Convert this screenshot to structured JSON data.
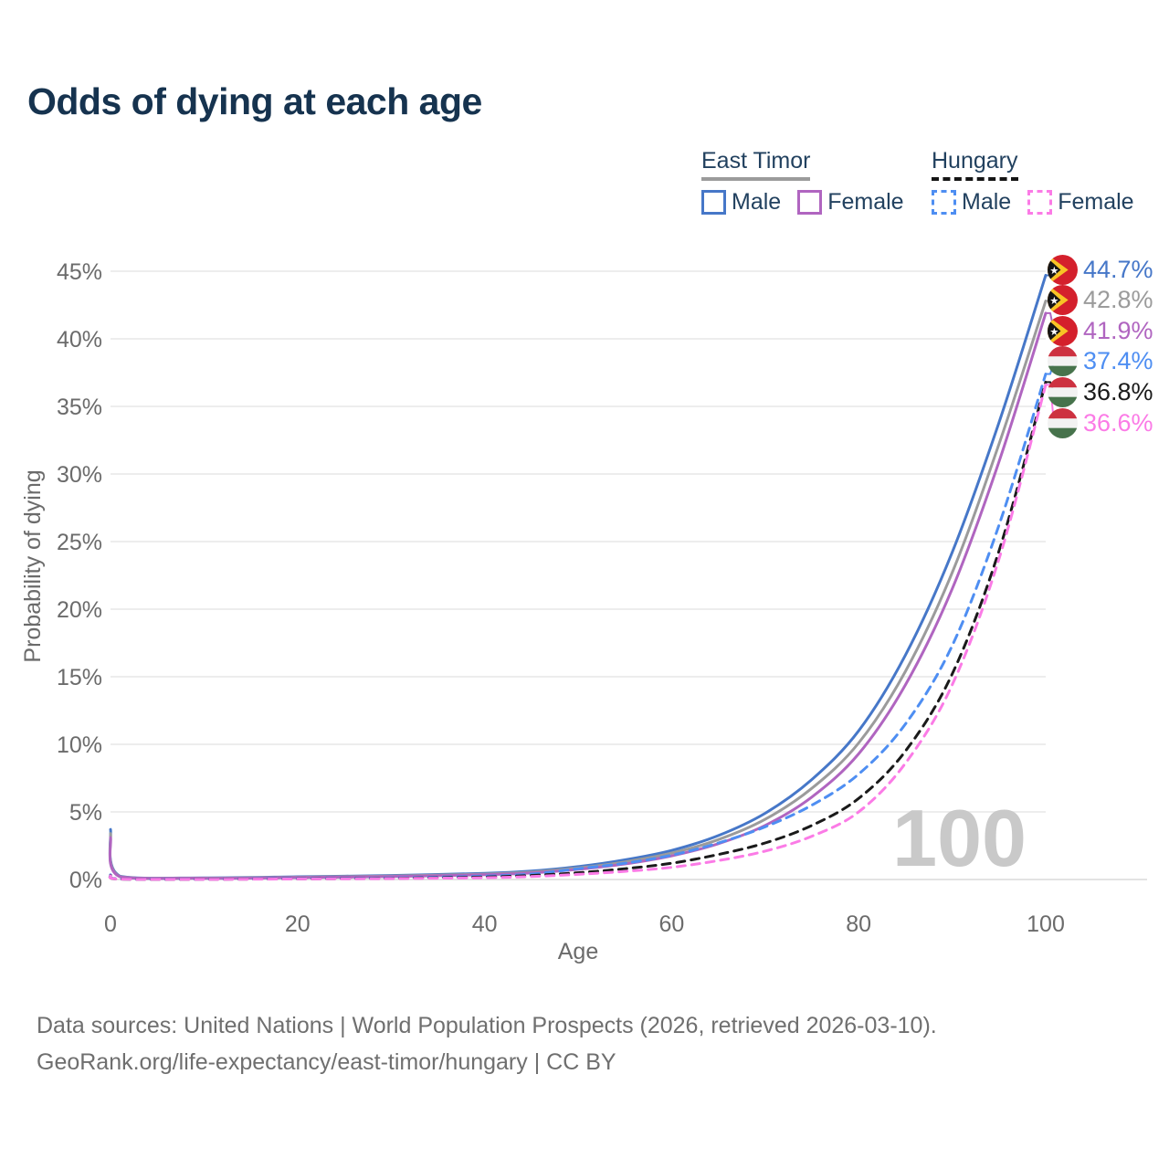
{
  "legend": {
    "groups": [
      {
        "name": "East Timor",
        "style": "solid",
        "underline_color": "#9b9b9b",
        "items": [
          {
            "label": "Male",
            "color": "#4677c8"
          },
          {
            "label": "Female",
            "color": "#b065c0"
          }
        ]
      },
      {
        "name": "Hungary",
        "style": "dashed",
        "underline_color": "#151515",
        "items": [
          {
            "label": "Male",
            "color": "#4e8ef2"
          },
          {
            "label": "Female",
            "color": "#fb7be6"
          }
        ]
      }
    ]
  },
  "footer": {
    "line1": "Data sources: United Nations | World Population Prospects (2026, retrieved 2026-03-10).",
    "line2": "GeoRank.org/life-expectancy/east-timor/hungary | CC BY"
  },
  "chart_data": {
    "type": "line",
    "title": "Odds of dying at each age",
    "xlabel": "Age",
    "ylabel": "Probability of dying",
    "xlim": [
      0,
      100
    ],
    "ylim": [
      0,
      45
    ],
    "xticks": [
      0,
      20,
      40,
      60,
      80,
      100
    ],
    "yticks": [
      0,
      5,
      10,
      15,
      20,
      25,
      30,
      35,
      40,
      45
    ],
    "grid": "horizontal",
    "watermark": "100",
    "x": [
      0,
      1,
      10,
      20,
      30,
      40,
      45,
      50,
      55,
      60,
      65,
      70,
      75,
      80,
      85,
      90,
      95,
      100
    ],
    "series": [
      {
        "id": "east-timor-male",
        "name": "East Timor — Male",
        "country": "East Timor",
        "sex": "Male",
        "line": "solid",
        "color": "#4677c8",
        "flag": "east-timor",
        "end_label": "44.7%",
        "values": [
          3.7,
          0.25,
          0.12,
          0.2,
          0.3,
          0.45,
          0.62,
          0.95,
          1.45,
          2.15,
          3.25,
          4.9,
          7.4,
          11.0,
          16.6,
          24.2,
          33.8,
          44.7
        ]
      },
      {
        "id": "east-timor-both",
        "name": "East Timor — Both sexes",
        "country": "East Timor",
        "sex": "Both",
        "line": "solid",
        "color": "#9b9b9b",
        "flag": "east-timor",
        "end_label": "42.8%",
        "values": [
          3.4,
          0.22,
          0.1,
          0.17,
          0.26,
          0.4,
          0.55,
          0.85,
          1.3,
          1.95,
          2.95,
          4.45,
          6.75,
          10.1,
          15.4,
          22.7,
          32.2,
          42.8
        ]
      },
      {
        "id": "east-timor-female",
        "name": "East Timor — Female",
        "country": "East Timor",
        "sex": "Female",
        "line": "solid",
        "color": "#b065c0",
        "flag": "east-timor",
        "end_label": "41.9%",
        "values": [
          3.1,
          0.2,
          0.09,
          0.14,
          0.22,
          0.35,
          0.48,
          0.75,
          1.15,
          1.75,
          2.65,
          4.0,
          6.1,
          9.3,
          14.4,
          21.5,
          30.9,
          41.9
        ]
      },
      {
        "id": "hungary-male",
        "name": "Hungary — Male",
        "country": "Hungary",
        "sex": "Male",
        "line": "dashed",
        "color": "#4e8ef2",
        "flag": "hungary",
        "end_label": "37.4%",
        "values": [
          0.35,
          0.04,
          0.02,
          0.07,
          0.12,
          0.25,
          0.4,
          0.8,
          1.2,
          1.8,
          2.7,
          3.9,
          5.5,
          7.8,
          11.5,
          17.3,
          26.2,
          37.4
        ]
      },
      {
        "id": "hungary-both",
        "name": "Hungary — Both sexes",
        "country": "Hungary",
        "sex": "Both",
        "line": "dashed",
        "color": "#1a1a1a",
        "flag": "hungary",
        "end_label": "36.8%",
        "values": [
          0.3,
          0.03,
          0.015,
          0.05,
          0.09,
          0.18,
          0.3,
          0.5,
          0.8,
          1.2,
          1.85,
          2.7,
          4.0,
          6.0,
          9.5,
          15.2,
          24.3,
          36.8
        ]
      },
      {
        "id": "hungary-female",
        "name": "Hungary — Female",
        "country": "Hungary",
        "sex": "Female",
        "line": "dashed",
        "color": "#fb7be6",
        "flag": "hungary",
        "end_label": "36.6%",
        "values": [
          0.28,
          0.03,
          0.01,
          0.04,
          0.07,
          0.13,
          0.22,
          0.38,
          0.6,
          0.9,
          1.4,
          2.1,
          3.2,
          5.0,
          8.6,
          14.4,
          23.7,
          36.6
        ]
      }
    ]
  }
}
